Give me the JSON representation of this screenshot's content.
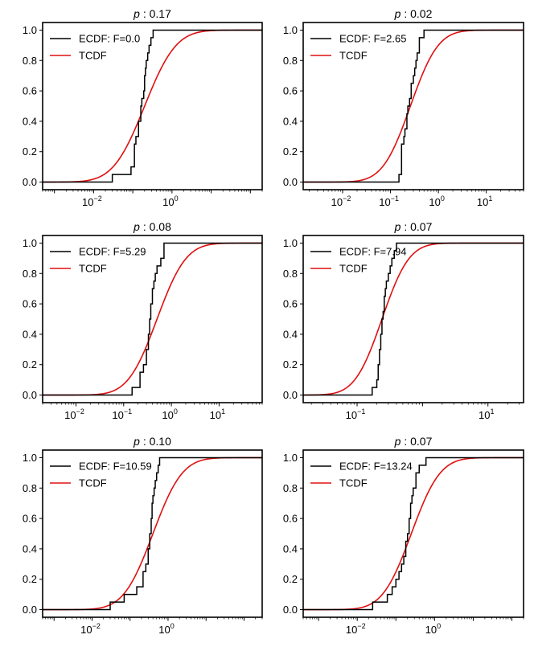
{
  "chart_data": [
    {
      "type": "line",
      "title_var": "p",
      "title_value": "0.17",
      "xscale": "log",
      "xlim": [
        0.0005,
        200
      ],
      "ylim": [
        -0.05,
        1.05
      ],
      "xtick_exponents": [
        -2,
        0
      ],
      "yticks": [
        "0.0",
        "0.2",
        "0.4",
        "0.6",
        "0.8",
        "1.0"
      ],
      "legend": {
        "position": "top-left",
        "ecdf_label": "ECDF: F=0.0",
        "tcdf_label": "TCDF"
      },
      "tcdf": {
        "median": 0.2,
        "sigma": 1.45
      },
      "ecdf_x": [
        0.03,
        0.09,
        0.11,
        0.12,
        0.14,
        0.16,
        0.17,
        0.19,
        0.2,
        0.21,
        0.22,
        0.24,
        0.26,
        0.29,
        0.33
      ],
      "ecdf_y": [
        0.05,
        0.1,
        0.25,
        0.3,
        0.4,
        0.5,
        0.55,
        0.6,
        0.7,
        0.75,
        0.8,
        0.85,
        0.9,
        0.95,
        1.0
      ]
    },
    {
      "type": "line",
      "title_var": "p",
      "title_value": "0.02",
      "xscale": "log",
      "xlim": [
        0.0015,
        60
      ],
      "ylim": [
        -0.05,
        1.05
      ],
      "xtick_exponents": [
        -2,
        -1,
        0,
        1
      ],
      "yticks": [
        "0.0",
        "0.2",
        "0.4",
        "0.6",
        "0.8",
        "1.0"
      ],
      "legend": {
        "position": "top-left",
        "ecdf_label": "ECDF: F=2.65",
        "tcdf_label": "TCDF"
      },
      "tcdf": {
        "median": 0.26,
        "sigma": 1.05
      },
      "ecdf_x": [
        0.15,
        0.17,
        0.19,
        0.2,
        0.22,
        0.23,
        0.25,
        0.27,
        0.3,
        0.32,
        0.34,
        0.36,
        0.4,
        0.5
      ],
      "ecdf_y": [
        0.05,
        0.25,
        0.3,
        0.35,
        0.45,
        0.5,
        0.55,
        0.65,
        0.7,
        0.75,
        0.8,
        0.85,
        0.95,
        1.0
      ]
    },
    {
      "type": "line",
      "title_var": "p",
      "title_value": "0.08",
      "xscale": "log",
      "xlim": [
        0.002,
        80
      ],
      "ylim": [
        -0.05,
        1.05
      ],
      "xtick_exponents": [
        -2,
        -1,
        0,
        1
      ],
      "yticks": [
        "0.0",
        "0.2",
        "0.4",
        "0.6",
        "0.8",
        "1.0"
      ],
      "legend": {
        "position": "top-left",
        "ecdf_label": "ECDF: F=5.29",
        "tcdf_label": "TCDF"
      },
      "tcdf": {
        "median": 0.5,
        "sigma": 1.1
      },
      "ecdf_x": [
        0.15,
        0.22,
        0.26,
        0.3,
        0.33,
        0.35,
        0.37,
        0.4,
        0.43,
        0.46,
        0.5,
        0.6,
        0.7
      ],
      "ecdf_y": [
        0.05,
        0.15,
        0.2,
        0.3,
        0.4,
        0.5,
        0.6,
        0.7,
        0.75,
        0.8,
        0.85,
        0.9,
        1.0
      ]
    },
    {
      "type": "line",
      "title_var": "p",
      "title_value": "0.07",
      "xscale": "log",
      "xlim": [
        0.015,
        35
      ],
      "ylim": [
        -0.05,
        1.05
      ],
      "xtick_exponents": [
        -1,
        1
      ],
      "yticks": [
        "0.0",
        "0.2",
        "0.4",
        "0.6",
        "0.8",
        "1.0"
      ],
      "legend": {
        "position": "top-left",
        "ecdf_label": "ECDF: F=7.94",
        "tcdf_label": "TCDF"
      },
      "tcdf": {
        "median": 0.24,
        "sigma": 0.75
      },
      "ecdf_x": [
        0.17,
        0.2,
        0.21,
        0.22,
        0.23,
        0.24,
        0.25,
        0.26,
        0.27,
        0.28,
        0.3,
        0.32,
        0.34,
        0.37,
        0.4
      ],
      "ecdf_y": [
        0.05,
        0.1,
        0.2,
        0.3,
        0.4,
        0.5,
        0.55,
        0.65,
        0.7,
        0.75,
        0.8,
        0.85,
        0.9,
        0.95,
        1.0
      ]
    },
    {
      "type": "line",
      "title_var": "p",
      "title_value": "0.10",
      "xscale": "log",
      "xlim": [
        0.0005,
        300
      ],
      "ylim": [
        -0.05,
        1.05
      ],
      "xtick_exponents": [
        -2,
        0
      ],
      "yticks": [
        "0.0",
        "0.2",
        "0.4",
        "0.6",
        "0.8",
        "1.0"
      ],
      "legend": {
        "position": "top-left",
        "ecdf_label": "ECDF: F=10.59",
        "tcdf_label": "TCDF"
      },
      "tcdf": {
        "median": 0.4,
        "sigma": 1.4
      },
      "ecdf_x": [
        0.03,
        0.07,
        0.15,
        0.22,
        0.26,
        0.3,
        0.33,
        0.36,
        0.38,
        0.4,
        0.43,
        0.46,
        0.5,
        0.55,
        0.6
      ],
      "ecdf_y": [
        0.05,
        0.1,
        0.15,
        0.25,
        0.3,
        0.4,
        0.5,
        0.6,
        0.7,
        0.75,
        0.8,
        0.85,
        0.9,
        0.95,
        1.0
      ]
    },
    {
      "type": "line",
      "title_var": "p",
      "title_value": "0.07",
      "xscale": "log",
      "xlim": [
        0.0004,
        200
      ],
      "ylim": [
        -0.05,
        1.05
      ],
      "xtick_exponents": [
        -2,
        0
      ],
      "yticks": [
        "0.0",
        "0.2",
        "0.4",
        "0.6",
        "0.8",
        "1.0"
      ],
      "legend": {
        "position": "top-left",
        "ecdf_label": "ECDF: F=13.24",
        "tcdf_label": "TCDF"
      },
      "tcdf": {
        "median": 0.25,
        "sigma": 1.35
      },
      "ecdf_x": [
        0.025,
        0.06,
        0.08,
        0.1,
        0.12,
        0.14,
        0.16,
        0.18,
        0.2,
        0.22,
        0.24,
        0.26,
        0.28,
        0.33,
        0.4,
        0.6
      ],
      "ecdf_y": [
        0.05,
        0.1,
        0.15,
        0.2,
        0.25,
        0.3,
        0.35,
        0.45,
        0.5,
        0.6,
        0.7,
        0.75,
        0.8,
        0.9,
        0.95,
        1.0
      ]
    }
  ],
  "colors": {
    "ecdf": "#000000",
    "tcdf": "#e01010"
  }
}
